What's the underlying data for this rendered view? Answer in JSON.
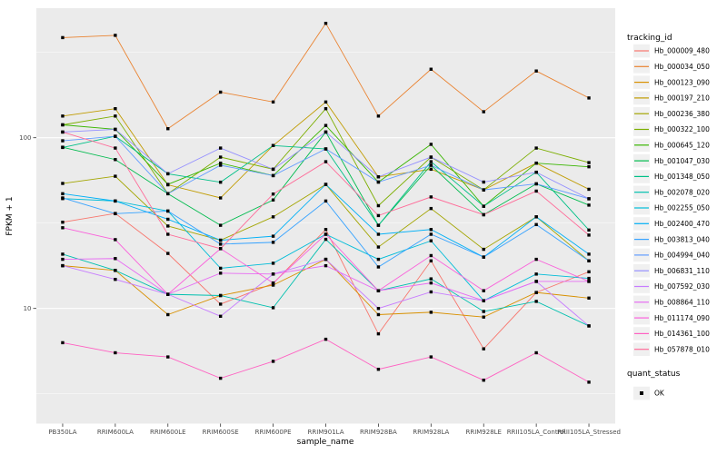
{
  "figure_type": "ggplot-line-chart",
  "panel": {
    "background_color": "#EBEBEB",
    "grid_color": "#FFFFFF",
    "point_marker": "filled-black-square"
  },
  "axes": {
    "xlabel": "sample_name",
    "ylabel": "FPKM + 1",
    "y_scale": "log10",
    "y_tick_labels": [
      "100",
      "10"
    ],
    "y_tick_values": [
      100,
      10
    ],
    "y_minor_gridline_values": [
      316.2,
      31.62,
      3.162
    ]
  },
  "legend": {
    "tracking_title": "tracking_id",
    "quant_title": "quant_status",
    "quant_items": [
      {
        "label": "OK",
        "marker": "filled-black-square"
      }
    ]
  },
  "chart_data": {
    "type": "line",
    "xlabel": "sample_name",
    "ylabel": "FPKM + 1",
    "y_scale": "log10",
    "ylim": [
      2.1,
      570
    ],
    "grid": "major at 10 and 100, minor at log midpoints",
    "legend_position": "right",
    "x": [
      "PB350LA",
      "RRIM600LA",
      "RRIM600LE",
      "RRIM600SE",
      "RRIM600PE",
      "RRIM901LA",
      "RRIM928BA",
      "RRIM928LA",
      "RRIM928LE",
      "RRII105LA_Control",
      "RRII105LA_Stressed"
    ],
    "series": [
      {
        "name": "Hb_000009_480",
        "color": "#F8766D",
        "values": [
          32,
          36,
          21,
          10.6,
          14,
          29,
          7.1,
          19,
          5.8,
          12.4,
          16.4
        ]
      },
      {
        "name": "Hb_000034_050",
        "color": "#EA8331",
        "values": [
          386,
          398,
          113,
          185,
          162,
          468,
          134,
          252,
          142,
          246,
          171
        ]
      },
      {
        "name": "Hb_000123_090",
        "color": "#D89000",
        "values": [
          17.8,
          16.7,
          9.2,
          11.9,
          13.7,
          19.4,
          9.2,
          9.5,
          8.9,
          12.4,
          11.5
        ]
      },
      {
        "name": "Hb_000197_210",
        "color": "#C09B00",
        "values": [
          134,
          148,
          53,
          44.4,
          90,
          162,
          59,
          65.4,
          49.5,
          71,
          49.9
        ]
      },
      {
        "name": "Hb_000236_380",
        "color": "#A3A500",
        "values": [
          54,
          59.5,
          30.4,
          25.1,
          34.4,
          53.3,
          22.9,
          38.5,
          22.2,
          34.4,
          19
        ]
      },
      {
        "name": "Hb_000322_100",
        "color": "#7CAE00",
        "values": [
          119,
          134,
          47,
          77,
          65.4,
          148,
          40,
          77,
          49.5,
          87,
          71.5
        ]
      },
      {
        "name": "Hb_000645_120",
        "color": "#39B600",
        "values": [
          119,
          112,
          53.3,
          71,
          60,
          118,
          55,
          91.5,
          39.7,
          71,
          67.6
        ]
      },
      {
        "name": "Hb_001047_030",
        "color": "#00BB4E",
        "values": [
          88,
          74.5,
          47,
          30.7,
          43.2,
          108,
          30.7,
          69,
          35.4,
          53.7,
          40.3
        ]
      },
      {
        "name": "Hb_001348_050",
        "color": "#00C087",
        "values": [
          87.7,
          102,
          61.5,
          54.9,
          90,
          86,
          30.7,
          72.4,
          39.7,
          62.8,
          28.8
        ]
      },
      {
        "name": "Hb_002078_020",
        "color": "#00C0AF",
        "values": [
          20.8,
          16.7,
          12.1,
          11.9,
          10.1,
          25.4,
          12.7,
          14.9,
          9.6,
          11,
          7.9
        ]
      },
      {
        "name": "Hb_002255_050",
        "color": "#00BCD8",
        "values": [
          44,
          42.6,
          37.2,
          17.2,
          18.4,
          27.2,
          19.4,
          24.9,
          11.1,
          15.9,
          15
        ]
      },
      {
        "name": "Hb_002400_470",
        "color": "#00B0F6",
        "values": [
          47,
          42.6,
          33.3,
          25.1,
          26.5,
          53.3,
          27.2,
          29,
          20,
          34.4,
          20.8
        ]
      },
      {
        "name": "Hb_003813_040",
        "color": "#35A2FF",
        "values": [
          44.4,
          35.9,
          37.2,
          23.8,
          24.4,
          42.6,
          17.5,
          27.2,
          20,
          31,
          19
        ]
      },
      {
        "name": "Hb_004994_040",
        "color": "#619CFF",
        "values": [
          96,
          102,
          47,
          69,
          60,
          86,
          55,
          69,
          49.5,
          53.7,
          43.9
        ]
      },
      {
        "name": "Hb_006831_110",
        "color": "#9590FF",
        "values": [
          108,
          112,
          61.5,
          87,
          65.4,
          108,
          59,
          77,
          55,
          62.8,
          43.9
        ]
      },
      {
        "name": "Hb_007592_030",
        "color": "#C77CFF",
        "values": [
          17.8,
          14.8,
          12.1,
          9,
          15.9,
          19.4,
          10,
          12.5,
          11.1,
          14.4,
          7.9
        ]
      },
      {
        "name": "Hb_008864_110",
        "color": "#E76BF3",
        "values": [
          19.4,
          19.6,
          12.1,
          16.1,
          15.9,
          17.8,
          12.7,
          14.1,
          11.1,
          14.4,
          14.4
        ]
      },
      {
        "name": "Hb_011174_090",
        "color": "#FA62DB",
        "values": [
          29.7,
          25.3,
          12.1,
          22.4,
          14.1,
          27.2,
          12.7,
          20.4,
          12.7,
          19.4,
          14.4
        ]
      },
      {
        "name": "Hb_014361_100",
        "color": "#FF61C2",
        "values": [
          6.3,
          5.5,
          5.2,
          3.9,
          4.9,
          6.6,
          4.4,
          5.2,
          3.8,
          5.5,
          3.7
        ]
      },
      {
        "name": "Hb_057878_010",
        "color": "#FF6A98",
        "values": [
          108,
          87,
          27.2,
          22.4,
          46.8,
          72.4,
          35,
          45,
          35.4,
          48.7,
          26.9
        ]
      }
    ]
  }
}
